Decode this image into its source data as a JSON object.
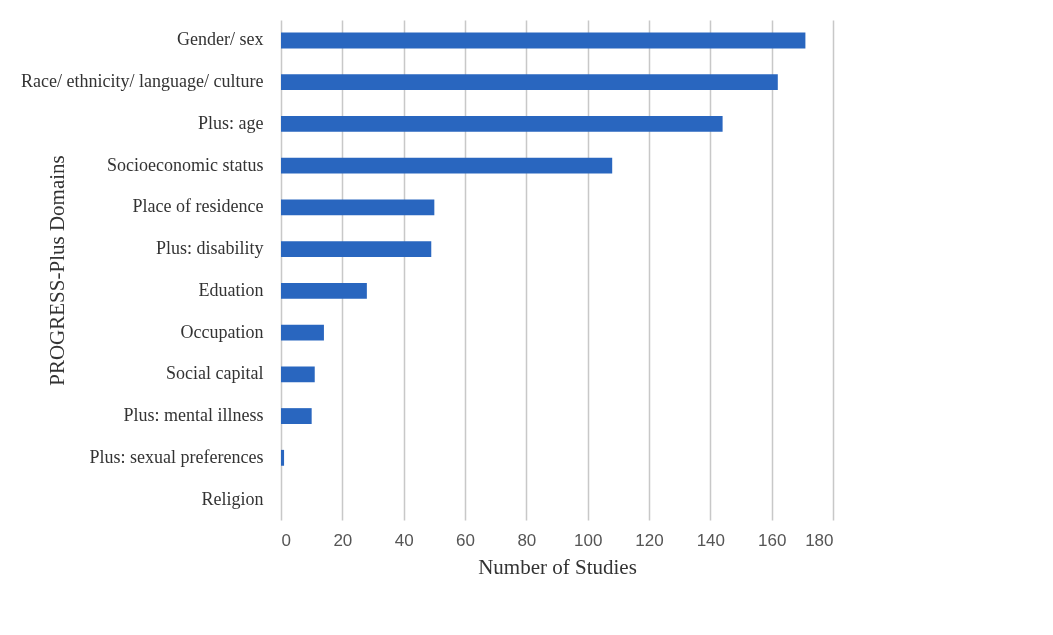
{
  "chart_data": {
    "type": "bar",
    "orientation": "horizontal",
    "categories": [
      "Gender/ sex",
      "Race/ ethnicity/ language/ culture",
      "Plus: age",
      "Socioeconomic status",
      "Place of residence",
      "Plus: disability",
      "Eduation",
      "Occupation",
      "Social capital",
      "Plus: mental illness",
      "Plus: sexual preferences",
      "Religion"
    ],
    "values": [
      171,
      162,
      144,
      108,
      50,
      49,
      28,
      14,
      11,
      10,
      1,
      0
    ],
    "color": "#2966bf",
    "xlim": [
      0,
      180
    ],
    "xticks": [
      0,
      20,
      40,
      60,
      80,
      100,
      120,
      140,
      160,
      180
    ],
    "xlabel": "Number of Studies",
    "ylabel": "PROGRESS-Plus Domains",
    "grid": "x"
  }
}
